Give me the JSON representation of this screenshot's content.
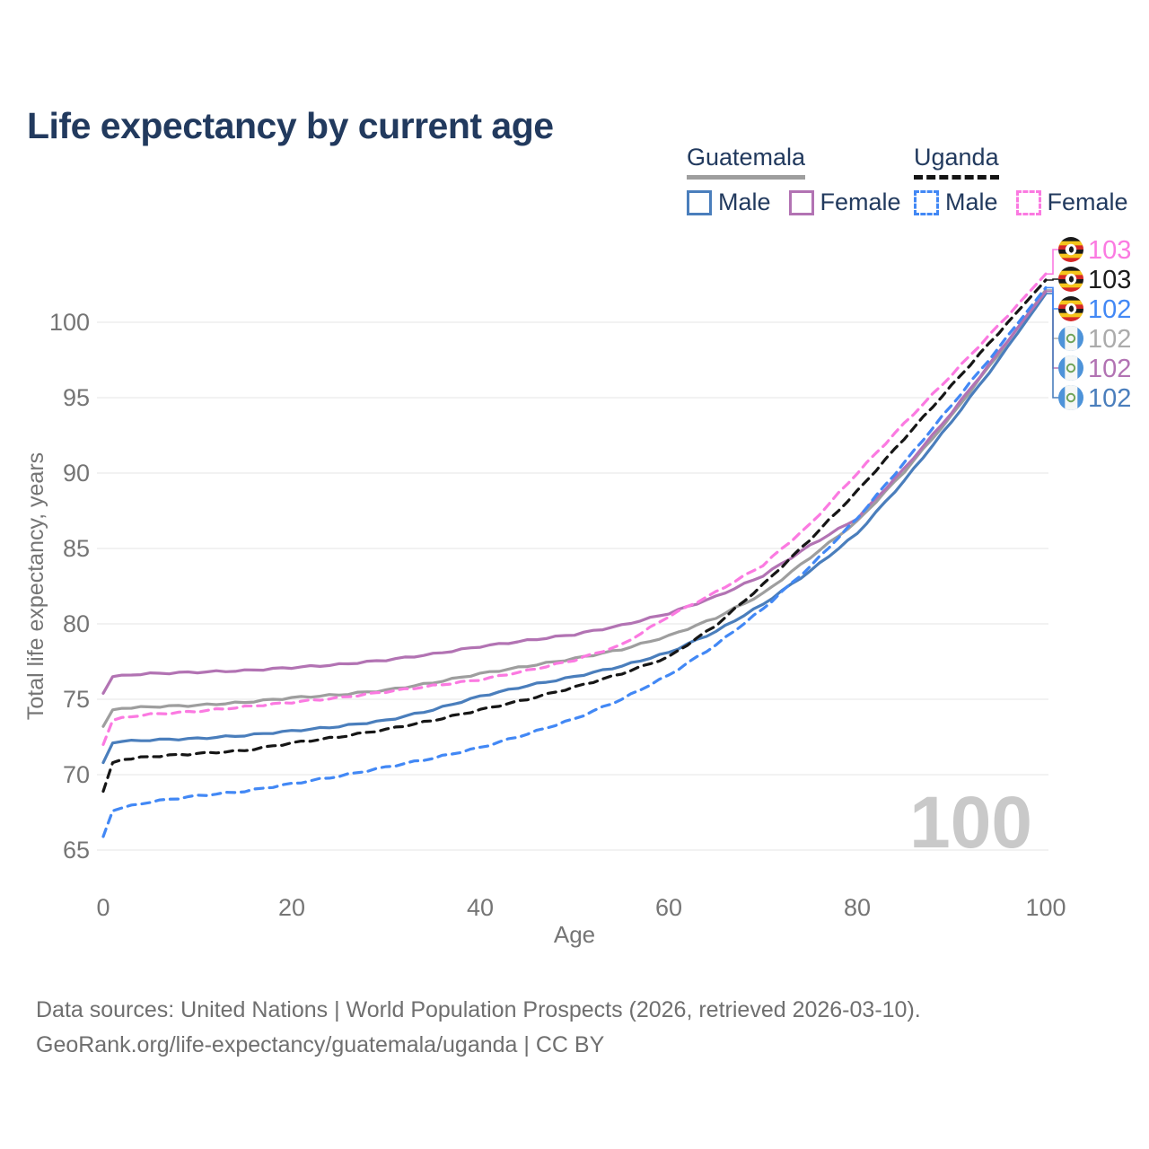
{
  "title": "Life expectancy by current age",
  "legend": {
    "groups": [
      {
        "label": "Guatemala",
        "line_style": "solid",
        "underline_color": "#9e9e9e",
        "items": [
          {
            "label": "Male",
            "color": "#4a7ebc"
          },
          {
            "label": "Female",
            "color": "#b273b3"
          }
        ]
      },
      {
        "label": "Uganda",
        "line_style": "dashed",
        "underline_color": "#141414",
        "items": [
          {
            "label": "Male",
            "color": "#4288f5"
          },
          {
            "label": "Female",
            "color": "#fb7ae1"
          }
        ]
      }
    ]
  },
  "watermark": "100",
  "footer": {
    "line1": "Data sources: United Nations | World Population Prospects (2026, retrieved 2026-03-10).",
    "line2": "GeoRank.org/life-expectancy/guatemala/uganda | CC BY"
  },
  "chart_data": {
    "type": "line",
    "title": "Life expectancy by current age",
    "xlabel": "Age",
    "ylabel": "Total life expectancy, years",
    "xlim": [
      0,
      100
    ],
    "ylim": [
      63.5,
      104
    ],
    "xticks": [
      0,
      20,
      40,
      60,
      80,
      100
    ],
    "yticks": [
      65,
      70,
      75,
      80,
      85,
      90,
      95,
      100
    ],
    "grid": true,
    "legend_position": "top-right",
    "ages": [
      0,
      1,
      2,
      5,
      10,
      15,
      20,
      25,
      30,
      35,
      40,
      45,
      50,
      55,
      60,
      65,
      70,
      75,
      80,
      85,
      90,
      95,
      100
    ],
    "series": [
      {
        "id": "guatemala-total",
        "name": "Guatemala Total",
        "country": "Guatemala",
        "sex": "both",
        "color": "#9e9e9e",
        "dashed": false,
        "values": [
          73.2,
          74.3,
          74.4,
          74.5,
          74.6,
          74.8,
          75.1,
          75.3,
          75.6,
          76.1,
          76.7,
          77.2,
          77.7,
          78.3,
          79.2,
          80.4,
          82.0,
          84.4,
          86.8,
          90.1,
          93.8,
          97.9,
          102.15
        ],
        "label": {
          "text": "102",
          "color": "#ababab",
          "flag": "guatemala"
        }
      },
      {
        "id": "guatemala-male",
        "name": "Guatemala Male",
        "country": "Guatemala",
        "sex": "male",
        "color": "#4a7ebc",
        "dashed": false,
        "values": [
          70.8,
          72.1,
          72.2,
          72.3,
          72.4,
          72.6,
          72.9,
          73.2,
          73.6,
          74.3,
          75.2,
          75.9,
          76.5,
          77.2,
          78.1,
          79.5,
          81.3,
          83.5,
          86.0,
          89.5,
          93.4,
          97.5,
          101.9
        ],
        "label": {
          "text": "102",
          "color": "#4a7ebc",
          "flag": "guatemala"
        }
      },
      {
        "id": "guatemala-female",
        "name": "Guatemala Female",
        "country": "Guatemala",
        "sex": "female",
        "color": "#b273b3",
        "dashed": false,
        "values": [
          75.4,
          76.5,
          76.6,
          76.7,
          76.8,
          76.9,
          77.1,
          77.3,
          77.6,
          78.0,
          78.5,
          78.9,
          79.3,
          79.9,
          80.7,
          81.8,
          83.2,
          85.2,
          87.0,
          90.3,
          94.0,
          98.0,
          102.05
        ],
        "label": {
          "text": "102",
          "color": "#b273b3",
          "flag": "guatemala"
        }
      },
      {
        "id": "uganda-total",
        "name": "Uganda Total",
        "country": "Uganda",
        "sex": "both",
        "color": "#161616",
        "dashed": true,
        "values": [
          68.9,
          70.8,
          71.0,
          71.2,
          71.4,
          71.6,
          72.1,
          72.5,
          73.0,
          73.6,
          74.3,
          75.0,
          75.8,
          76.7,
          77.8,
          79.9,
          82.6,
          85.6,
          88.8,
          92.3,
          95.8,
          99.3,
          102.8
        ],
        "label": {
          "text": "103",
          "color": "#1c1c1c",
          "flag": "uganda"
        }
      },
      {
        "id": "uganda-male",
        "name": "Uganda Male",
        "country": "Uganda",
        "sex": "male",
        "color": "#4288f5",
        "dashed": true,
        "values": [
          65.9,
          67.6,
          67.8,
          68.2,
          68.6,
          68.9,
          69.4,
          69.9,
          70.5,
          71.1,
          71.8,
          72.7,
          73.7,
          75.0,
          76.6,
          78.6,
          81.0,
          83.8,
          87.0,
          90.7,
          94.5,
          98.3,
          102.3
        ],
        "label": {
          "text": "102",
          "color": "#4288f5",
          "flag": "uganda"
        }
      },
      {
        "id": "uganda-female",
        "name": "Uganda Female",
        "country": "Uganda",
        "sex": "female",
        "color": "#fb7ae1",
        "dashed": true,
        "values": [
          72.0,
          73.6,
          73.8,
          74.0,
          74.2,
          74.5,
          74.8,
          75.1,
          75.5,
          75.9,
          76.3,
          76.9,
          77.6,
          78.6,
          80.5,
          82.1,
          83.9,
          86.6,
          90.0,
          93.3,
          96.5,
          99.8,
          103.2
        ],
        "label": {
          "text": "103",
          "color": "#fb7ae1",
          "flag": "uganda"
        }
      }
    ],
    "label_rows": {
      "uganda-female": 278,
      "uganda-total": 311,
      "uganda-male": 344,
      "guatemala-total": 377,
      "guatemala-female": 410,
      "guatemala-male": 443
    },
    "colors": {
      "title_text": "#223a5e",
      "axis_text": "#757575",
      "gridline": "#e9e9e9",
      "watermark": "#c9c9c9",
      "footer_text": "#6f6f6f",
      "uganda_flag": [
        "#1a1a1a",
        "#f5c51c",
        "#d62828"
      ],
      "guatemala_flag": [
        "#4d93d9",
        "#f5f7f6",
        "#6fa45a"
      ]
    }
  }
}
